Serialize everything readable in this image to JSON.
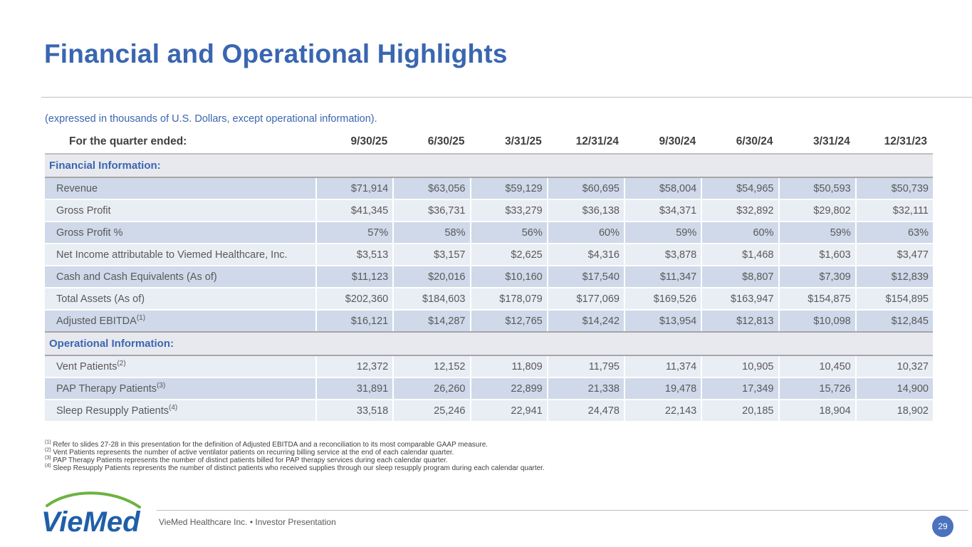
{
  "slide": {
    "title": "Financial and Operational Highlights",
    "subtitle": "(expressed in thousands of U.S. Dollars, except operational information).",
    "footer_text": "VieMed Healthcare Inc.  •  Investor Presentation",
    "page_number": "29",
    "logo_text": "VieMed",
    "colors": {
      "title": "#3a66b0",
      "row_dark": "#cfd9ea",
      "row_light": "#e9edf4",
      "section": "#e7e9ee",
      "logo_blue": "#1f5fa8",
      "logo_green": "#6cb33f"
    }
  },
  "table": {
    "header_label": "For the quarter ended:",
    "periods": [
      "9/30/25",
      "6/30/25",
      "3/31/25",
      "12/31/24",
      "9/30/24",
      "6/30/24",
      "3/31/24",
      "12/31/23"
    ],
    "financial_section": "Financial Information:",
    "financial_rows": [
      {
        "label": "Revenue",
        "sup": "",
        "values": [
          "$71,914",
          "$63,056",
          "$59,129",
          "$60,695",
          "$58,004",
          "$54,965",
          "$50,593",
          "$50,739"
        ]
      },
      {
        "label": "Gross Profit",
        "sup": "",
        "values": [
          "$41,345",
          "$36,731",
          "$33,279",
          "$36,138",
          "$34,371",
          "$32,892",
          "$29,802",
          "$32,111"
        ]
      },
      {
        "label": "Gross Profit %",
        "sup": "",
        "values": [
          "57%",
          "58%",
          "56%",
          "60%",
          "59%",
          "60%",
          "59%",
          "63%"
        ]
      },
      {
        "label": "Net Income attributable to Viemed Healthcare, Inc.",
        "sup": "",
        "values": [
          "$3,513",
          "$3,157",
          "$2,625",
          "$4,316",
          "$3,878",
          "$1,468",
          "$1,603",
          "$3,477"
        ]
      },
      {
        "label": "Cash and Cash Equivalents (As of)",
        "sup": "",
        "values": [
          "$11,123",
          "$20,016",
          "$10,160",
          "$17,540",
          "$11,347",
          "$8,807",
          "$7,309",
          "$12,839"
        ]
      },
      {
        "label": "Total Assets (As of)",
        "sup": "",
        "values": [
          "$202,360",
          "$184,603",
          "$178,079",
          "$177,069",
          "$169,526",
          "$163,947",
          "$154,875",
          "$154,895"
        ]
      },
      {
        "label": "Adjusted EBITDA",
        "sup": "(1)",
        "values": [
          "$16,121",
          "$14,287",
          "$12,765",
          "$14,242",
          "$13,954",
          "$12,813",
          "$10,098",
          "$12,845"
        ]
      }
    ],
    "operational_section": "Operational Information:",
    "operational_rows": [
      {
        "label": "Vent Patients",
        "sup": "(2)",
        "values": [
          "12,372",
          "12,152",
          "11,809",
          "11,795",
          "11,374",
          "10,905",
          "10,450",
          "10,327"
        ]
      },
      {
        "label": "PAP Therapy Patients",
        "sup": "(3)",
        "values": [
          "31,891",
          "26,260",
          "22,899",
          "21,338",
          "19,478",
          "17,349",
          "15,726",
          "14,900"
        ]
      },
      {
        "label": "Sleep Resupply Patients",
        "sup": "(4)",
        "values": [
          "33,518",
          "25,246",
          "22,941",
          "24,478",
          "22,143",
          "20,185",
          "18,904",
          "18,902"
        ]
      }
    ]
  },
  "footnotes": [
    {
      "marker": "(1)",
      "text": " Refer to slides 27-28 in this presentation for the definition of Adjusted EBITDA and a reconciliation to its most comparable GAAP measure."
    },
    {
      "marker": "(2)",
      "text": " Vent Patients represents the number of active ventilator patients on recurring billing service at the end of each calendar quarter."
    },
    {
      "marker": "(3)",
      "text": " PAP Therapy Patients represents the number of distinct patients billed for PAP therapy services during each calendar quarter."
    },
    {
      "marker": "(4)",
      "text": " Sleep Resupply Patients represents the number of distinct patients who received supplies through our sleep resupply program during each calendar quarter."
    }
  ]
}
